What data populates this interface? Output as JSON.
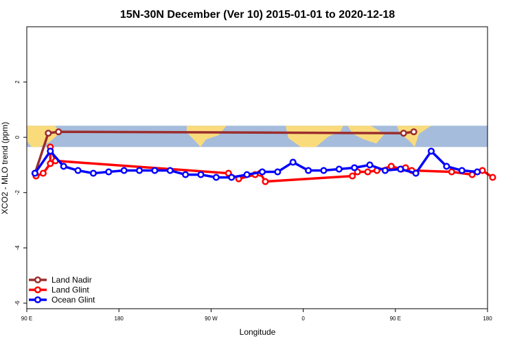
{
  "chart_data": {
    "type": "line",
    "title": "15N-30N December (Ver 10)   2015-01-01 to 2020-12-18",
    "xlabel": "Longitude",
    "ylabel": "XCO2 - MLO trend (ppm)",
    "xlim": [
      90,
      540
    ],
    "ylim": [
      -6.2,
      4.0
    ],
    "x_ticks": [
      {
        "value": 90,
        "label": "90 E"
      },
      {
        "value": 180,
        "label": "180"
      },
      {
        "value": 270,
        "label": "90 W"
      },
      {
        "value": 360,
        "label": "0"
      },
      {
        "value": 450,
        "label": "90 E"
      },
      {
        "value": 540,
        "label": "180"
      }
    ],
    "y_ticks": [
      {
        "value": -6,
        "label": "-6"
      },
      {
        "value": -4,
        "label": "-4"
      },
      {
        "value": -2,
        "label": "-2"
      },
      {
        "value": 0,
        "label": "0"
      },
      {
        "value": 2,
        "label": "2"
      }
    ],
    "map_band": {
      "ymin": -0.35,
      "ymax": 0.42,
      "ocean_color": "#a5bcdc",
      "land_color": "#fadb7c"
    },
    "legend_position": "bottom-left",
    "series": [
      {
        "name": "Land Nadir",
        "color": "#9b2d2d",
        "x": [
          98,
          111,
          121,
          458,
          468
        ],
        "y": [
          -1.3,
          0.15,
          0.2,
          0.15,
          0.2
        ]
      },
      {
        "name": "Land Glint",
        "color": "#ff0000",
        "x": [
          98,
          99,
          106,
          113,
          113,
          118,
          287,
          297,
          313,
          318,
          323,
          408,
          413,
          423,
          432,
          446,
          456,
          460,
          466,
          505,
          525,
          535,
          545
        ],
        "y": [
          -1.3,
          -1.4,
          -1.3,
          -0.95,
          -0.35,
          -0.85,
          -1.3,
          -1.5,
          -1.35,
          -1.3,
          -1.6,
          -1.4,
          -1.25,
          -1.25,
          -1.2,
          -1.05,
          -1.15,
          -1.1,
          -1.2,
          -1.25,
          -1.35,
          -1.2,
          -1.45
        ]
      },
      {
        "name": "Ocean Glint",
        "color": "#0000ff",
        "x": [
          98,
          113,
          126,
          140,
          155,
          170,
          185,
          200,
          215,
          230,
          245,
          260,
          275,
          290,
          305,
          320,
          335,
          350,
          365,
          380,
          395,
          410,
          425,
          440,
          455,
          470,
          485,
          500,
          515,
          530
        ],
        "y": [
          -1.3,
          -0.5,
          -1.05,
          -1.2,
          -1.3,
          -1.25,
          -1.2,
          -1.2,
          -1.2,
          -1.2,
          -1.35,
          -1.35,
          -1.45,
          -1.45,
          -1.35,
          -1.25,
          -1.25,
          -0.9,
          -1.2,
          -1.2,
          -1.15,
          -1.1,
          -1.0,
          -1.2,
          -1.15,
          -1.3,
          -0.5,
          -1.05,
          -1.2,
          -1.25
        ]
      }
    ]
  }
}
